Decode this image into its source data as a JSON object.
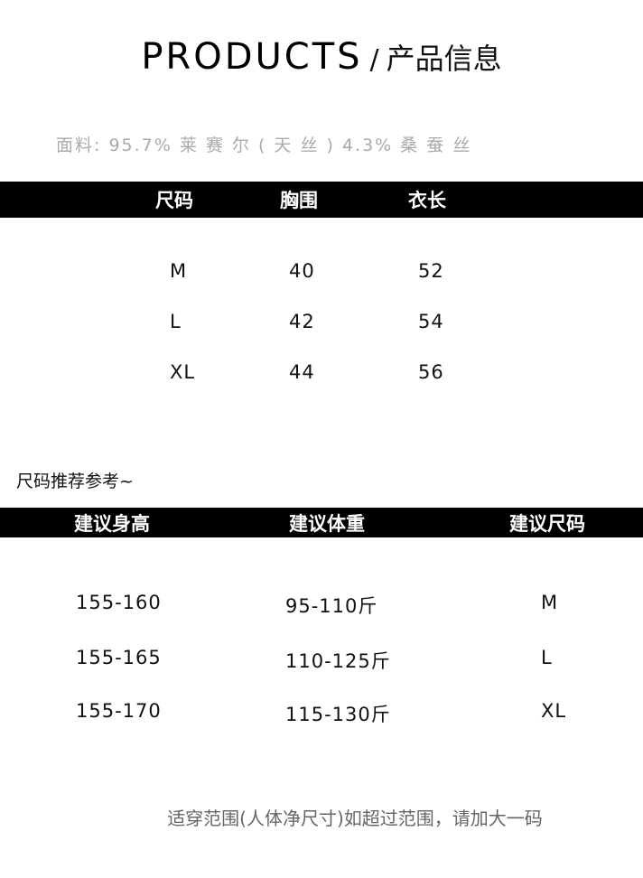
{
  "title": {
    "en": "PRODUCTS",
    "sep": "/",
    "cn": "产品信息"
  },
  "fabric": "面料: 95.7% 莱 赛 尔 ( 天 丝 ) 4.3% 桑 蚕 丝",
  "size_table": {
    "headers": [
      "尺码",
      "胸围",
      "衣长"
    ],
    "rows": [
      [
        "M",
        "40",
        "52"
      ],
      [
        "L",
        "42",
        "54"
      ],
      [
        "XL",
        "44",
        "56"
      ]
    ]
  },
  "recommend_label": "尺码推荐参考~",
  "recommend_table": {
    "headers": [
      "建议身高",
      "建议体重",
      "建议尺码"
    ],
    "rows": [
      [
        "155-160",
        "95-110斤",
        "M"
      ],
      [
        "155-165",
        "110-125斤",
        "L"
      ],
      [
        "155-170",
        "115-130斤",
        "XL"
      ]
    ]
  },
  "note": "适穿范围(人体净尺寸)如超过范围，请加大一码"
}
